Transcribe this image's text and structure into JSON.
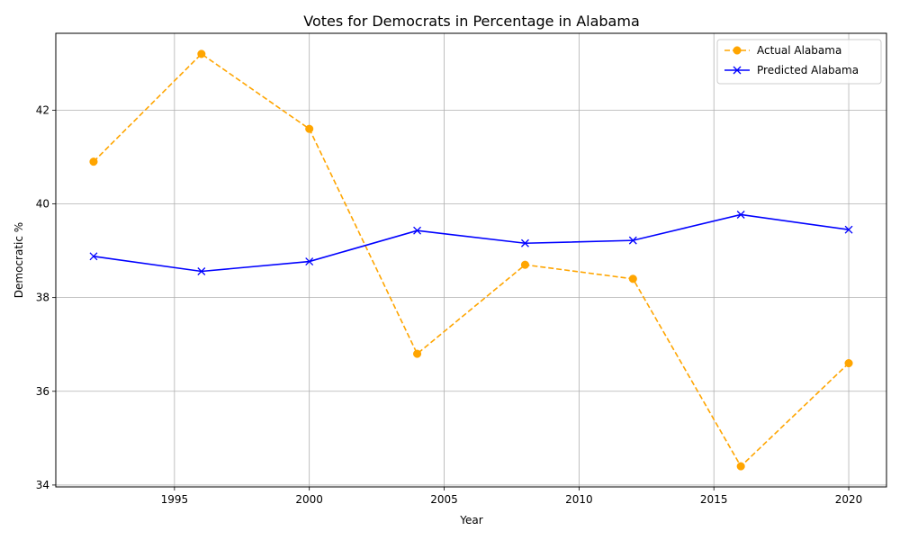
{
  "chart_data": {
    "type": "line",
    "title": "Votes for Democrats in Percentage in Alabama",
    "xlabel": "Year",
    "ylabel": "Democratic %",
    "x": [
      1992,
      1996,
      2000,
      2004,
      2008,
      2012,
      2016,
      2020
    ],
    "xlim": [
      1990.6,
      2021.4
    ],
    "ylim": [
      33.96,
      43.64
    ],
    "xticks": [
      1995,
      2000,
      2005,
      2010,
      2015,
      2020
    ],
    "yticks": [
      34,
      36,
      38,
      40,
      42
    ],
    "grid": true,
    "legend_position": "top-right",
    "series": [
      {
        "name": "Actual Alabama",
        "values": [
          40.9,
          43.2,
          41.6,
          36.8,
          38.7,
          38.4,
          34.4,
          36.6
        ],
        "color": "#ffa500",
        "line_style": "dashed",
        "marker": "circle"
      },
      {
        "name": "Predicted Alabama",
        "values": [
          38.88,
          38.56,
          38.77,
          39.43,
          39.16,
          39.22,
          39.77,
          39.45
        ],
        "color": "#0000ff",
        "line_style": "solid",
        "marker": "x"
      }
    ]
  }
}
